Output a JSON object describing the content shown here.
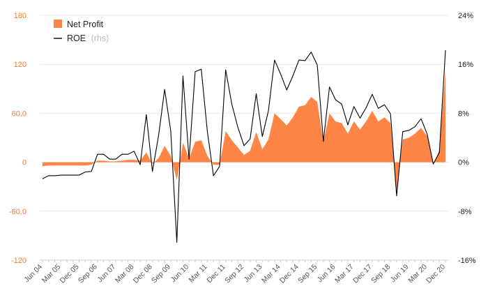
{
  "chart_data": {
    "type": "area",
    "colors": {
      "net_profit": "#ff8547",
      "roe": "#000000",
      "left_axis_text": "#f07c2e",
      "grid": "#e8e8e8"
    },
    "legend": {
      "position": "top-left",
      "items": [
        {
          "name": "Net Profit",
          "suffix": ""
        },
        {
          "name": "ROE",
          "suffix": "(rhs)"
        }
      ]
    },
    "y_left": {
      "min": -120,
      "max": 180,
      "ticks": [
        180,
        120,
        60.0,
        0,
        -60.0,
        -120
      ],
      "tick_labels": [
        "180",
        "120",
        "60.0",
        "0",
        "-60.0",
        "-120"
      ]
    },
    "y_right": {
      "min": -16,
      "max": 24,
      "ticks": [
        24,
        16,
        8,
        0,
        -8,
        -16
      ],
      "tick_labels": [
        "24%",
        "16%",
        "8%",
        "0%",
        "-8%",
        "-16%"
      ]
    },
    "grid": true,
    "x_tick_labels": [
      "Jun 04",
      "Mar 05",
      "Dec 05",
      "Sep 06",
      "Jun 07",
      "Mar 08",
      "Dec 08",
      "Sep 09",
      "Jun 10",
      "Mar 11",
      "Dec 11",
      "Sep 12",
      "Jun 13",
      "Mar 14",
      "Dec 14",
      "Sep 15",
      "Jun 16",
      "Mar 17",
      "Dec 17",
      "Sep 18",
      "Jun 19",
      "Mar 20",
      "Dec 20"
    ],
    "x_tick_index": [
      0,
      3,
      6,
      9,
      12,
      15,
      18,
      21,
      24,
      27,
      30,
      33,
      36,
      39,
      42,
      45,
      48,
      51,
      54,
      57,
      60,
      63,
      66
    ],
    "periods": [
      "Jun 04",
      "Sep 04",
      "Dec 04",
      "Mar 05",
      "Jun 05",
      "Sep 05",
      "Dec 05",
      "Mar 06",
      "Jun 06",
      "Sep 06",
      "Dec 06",
      "Mar 07",
      "Jun 07",
      "Sep 07",
      "Dec 07",
      "Mar 08",
      "Jun 08",
      "Sep 08",
      "Dec 08",
      "Mar 09",
      "Jun 09",
      "Sep 09",
      "Dec 09",
      "Mar 10",
      "Jun 10",
      "Sep 10",
      "Dec 10",
      "Mar 11",
      "Jun 11",
      "Sep 11",
      "Dec 11",
      "Mar 12",
      "Jun 12",
      "Sep 12",
      "Dec 12",
      "Mar 13",
      "Jun 13",
      "Sep 13",
      "Dec 13",
      "Mar 14",
      "Jun 14",
      "Sep 14",
      "Dec 14",
      "Mar 15",
      "Jun 15",
      "Sep 15",
      "Dec 15",
      "Mar 16",
      "Jun 16",
      "Sep 16",
      "Dec 16",
      "Mar 17",
      "Jun 17",
      "Sep 17",
      "Dec 17",
      "Mar 18",
      "Jun 18",
      "Sep 18",
      "Dec 18",
      "Mar 19",
      "Jun 19",
      "Sep 19",
      "Dec 19",
      "Mar 20",
      "Jun 20",
      "Sep 20",
      "Dec 20"
    ],
    "series": [
      {
        "name": "Net Profit",
        "axis": "left",
        "kind": "area",
        "values": [
          -5,
          -4,
          -4,
          -4,
          -4,
          -4,
          -4,
          -4,
          -3,
          2,
          2,
          1,
          1,
          2,
          3,
          3,
          2,
          12,
          -2,
          5,
          20,
          8,
          -22,
          24,
          5,
          25,
          27,
          8,
          -3,
          -3,
          38,
          27,
          18,
          9,
          14,
          37,
          16,
          28,
          60,
          53,
          45,
          55,
          68,
          70,
          80,
          74,
          25,
          60,
          50,
          48,
          35,
          50,
          40,
          50,
          63,
          50,
          55,
          48,
          -35,
          28,
          30,
          35,
          42,
          32,
          -3,
          15,
          112
        ]
      },
      {
        "name": "ROE",
        "axis": "right",
        "kind": "line",
        "values": [
          -2.7,
          -2.2,
          -2.2,
          -2.1,
          -2.1,
          -2.1,
          -2.1,
          -1.6,
          -1.5,
          1.3,
          1.3,
          0.5,
          0.5,
          1.3,
          1.3,
          1.8,
          -0.4,
          7.8,
          -1.5,
          4.3,
          11.9,
          5.1,
          -13.1,
          14.1,
          0.5,
          14.8,
          15.2,
          5,
          -2.2,
          -0.7,
          15.1,
          9.5,
          5.7,
          2.7,
          3.8,
          11.2,
          4.2,
          8.4,
          16.7,
          14.4,
          11.8,
          14.1,
          16.7,
          16.6,
          18,
          15.9,
          3.4,
          12.3,
          10.2,
          9.5,
          6.1,
          9.1,
          7.2,
          8.9,
          11.1,
          8.8,
          9.4,
          7.9,
          -5.5,
          5,
          5.2,
          5.8,
          7.1,
          4.6,
          -0.3,
          1.6,
          18.3
        ]
      }
    ]
  }
}
